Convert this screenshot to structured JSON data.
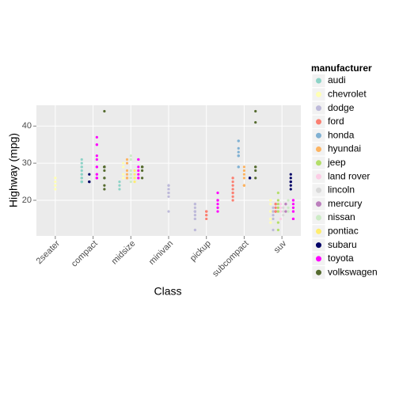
{
  "chart_data": {
    "type": "scatter",
    "x_label": "Class",
    "y_label": "Highway (mpg)",
    "legend_title": "manufacturer",
    "categories": [
      "2seater",
      "compact",
      "midsize",
      "minivan",
      "pickup",
      "subcompact",
      "suv"
    ],
    "ylim": [
      10.4,
      45.6
    ],
    "yticks": [
      20,
      30,
      40
    ],
    "grid": true,
    "legend": "right",
    "series": [
      {
        "name": "audi",
        "color": "#8dd3c7",
        "x": [
          "compact",
          "compact",
          "compact",
          "compact",
          "compact",
          "compact",
          "compact",
          "compact",
          "compact",
          "compact",
          "compact",
          "compact",
          "compact",
          "compact",
          "compact",
          "midsize",
          "midsize",
          "midsize"
        ],
        "values": [
          29,
          29,
          31,
          30,
          26,
          26,
          27,
          26,
          25,
          28,
          27,
          25,
          25,
          25,
          25,
          24,
          25,
          23
        ]
      },
      {
        "name": "chevrolet",
        "color": "#ffffb3",
        "x": [
          "2seater",
          "2seater",
          "2seater",
          "2seater",
          "2seater",
          "suv",
          "suv",
          "suv",
          "suv",
          "suv",
          "suv",
          "suv",
          "suv",
          "suv",
          "midsize",
          "midsize",
          "midsize",
          "midsize",
          "midsize"
        ],
        "values": [
          26,
          25,
          26,
          24,
          23,
          20,
          15,
          20,
          17,
          17,
          19,
          14,
          15,
          17,
          27,
          30,
          26,
          29,
          26
        ]
      },
      {
        "name": "dodge",
        "color": "#bebada",
        "x": [
          "minivan",
          "minivan",
          "minivan",
          "minivan",
          "minivan",
          "minivan",
          "minivan",
          "minivan",
          "minivan",
          "minivan",
          "minivan",
          "pickup",
          "pickup",
          "pickup",
          "pickup",
          "pickup",
          "pickup",
          "pickup",
          "pickup",
          "pickup",
          "suv",
          "suv",
          "suv",
          "suv",
          "suv",
          "suv",
          "suv",
          "pickup",
          "pickup",
          "pickup",
          "pickup",
          "pickup",
          "pickup",
          "pickup",
          "pickup",
          "pickup",
          "pickup"
        ],
        "values": [
          24,
          24,
          22,
          22,
          24,
          24,
          17,
          22,
          21,
          23,
          23,
          19,
          18,
          17,
          17,
          19,
          19,
          12,
          17,
          15,
          17,
          17,
          12,
          17,
          16,
          18,
          15,
          16,
          17,
          17,
          17,
          12,
          15,
          16,
          17,
          15,
          17
        ]
      },
      {
        "name": "ford",
        "color": "#fb8072",
        "x": [
          "suv",
          "suv",
          "suv",
          "suv",
          "suv",
          "suv",
          "suv",
          "suv",
          "suv",
          "pickup",
          "pickup",
          "pickup",
          "pickup",
          "pickup",
          "pickup",
          "pickup",
          "subcompact",
          "subcompact",
          "subcompact",
          "subcompact",
          "subcompact",
          "subcompact",
          "subcompact",
          "subcompact",
          "subcompact"
        ],
        "values": [
          17,
          17,
          18,
          17,
          19,
          19,
          19,
          17,
          17,
          17,
          16,
          17,
          17,
          16,
          17,
          15,
          26,
          25,
          26,
          24,
          21,
          22,
          23,
          22,
          20
        ]
      },
      {
        "name": "honda",
        "color": "#80b1d3",
        "x": [
          "subcompact",
          "subcompact",
          "subcompact",
          "subcompact",
          "subcompact",
          "subcompact",
          "subcompact",
          "subcompact",
          "subcompact"
        ],
        "values": [
          33,
          32,
          32,
          29,
          32,
          34,
          36,
          36,
          29
        ]
      },
      {
        "name": "hyundai",
        "color": "#fdb462",
        "x": [
          "midsize",
          "midsize",
          "midsize",
          "midsize",
          "midsize",
          "midsize",
          "midsize",
          "subcompact",
          "subcompact",
          "subcompact",
          "subcompact",
          "subcompact",
          "subcompact",
          "subcompact"
        ],
        "values": [
          26,
          27,
          30,
          31,
          26,
          26,
          28,
          26,
          29,
          28,
          27,
          24,
          24,
          24
        ]
      },
      {
        "name": "jeep",
        "color": "#b3de69",
        "x": [
          "suv",
          "suv",
          "suv",
          "suv",
          "suv",
          "suv",
          "suv",
          "suv"
        ],
        "values": [
          20,
          17,
          12,
          19,
          18,
          14,
          22,
          17
        ]
      },
      {
        "name": "land rover",
        "color": "#fccde5",
        "x": [
          "suv",
          "suv",
          "suv",
          "suv"
        ],
        "values": [
          15,
          17,
          19,
          18
        ]
      },
      {
        "name": "lincoln",
        "color": "#d9d9d9",
        "x": [
          "suv",
          "suv",
          "suv"
        ],
        "values": [
          17,
          16,
          18
        ]
      },
      {
        "name": "mercury",
        "color": "#bc80bd",
        "x": [
          "suv",
          "suv",
          "suv",
          "suv"
        ],
        "values": [
          17,
          19,
          19,
          17
        ]
      },
      {
        "name": "nissan",
        "color": "#ccebc5",
        "x": [
          "midsize",
          "midsize",
          "midsize",
          "midsize",
          "midsize",
          "midsize",
          "midsize",
          "midsize",
          "midsize",
          "suv",
          "suv",
          "suv",
          "suv"
        ],
        "values": [
          28,
          27,
          31,
          32,
          27,
          26,
          26,
          25,
          26,
          17,
          17,
          20,
          18
        ]
      },
      {
        "name": "pontiac",
        "color": "#ffed6f",
        "x": [
          "midsize",
          "midsize",
          "midsize",
          "midsize",
          "midsize"
        ],
        "values": [
          26,
          26,
          27,
          28,
          25
        ]
      },
      {
        "name": "subaru",
        "color": "#000066",
        "x": [
          "suv",
          "suv",
          "suv",
          "suv",
          "suv",
          "suv",
          "subcompact",
          "subcompact",
          "subcompact",
          "subcompact",
          "compact",
          "compact",
          "compact",
          "compact"
        ],
        "values": [
          25,
          24,
          27,
          25,
          26,
          23,
          26,
          26,
          26,
          26,
          27,
          25,
          25,
          25
        ]
      },
      {
        "name": "toyota",
        "color": "#ff00ff",
        "x": [
          "suv",
          "suv",
          "suv",
          "suv",
          "suv",
          "suv",
          "midsize",
          "midsize",
          "midsize",
          "midsize",
          "midsize",
          "midsize",
          "midsize",
          "compact",
          "compact",
          "compact",
          "compact",
          "compact",
          "compact",
          "compact",
          "compact",
          "compact",
          "compact",
          "compact",
          "compact",
          "suv",
          "suv",
          "pickup",
          "pickup",
          "pickup",
          "pickup",
          "pickup",
          "pickup",
          "pickup"
        ],
        "values": [
          20,
          15,
          20,
          17,
          17,
          19,
          27,
          29,
          31,
          31,
          26,
          26,
          28,
          27,
          29,
          31,
          32,
          27,
          26,
          26,
          35,
          37,
          35,
          29,
          26,
          15,
          18,
          20,
          20,
          22,
          17,
          19,
          18,
          20
        ]
      },
      {
        "name": "volkswagen",
        "color": "#556b2f",
        "x": [
          "compact",
          "compact",
          "compact",
          "compact",
          "compact",
          "compact",
          "compact",
          "compact",
          "compact",
          "compact",
          "compact",
          "compact",
          "compact",
          "compact",
          "subcompact",
          "subcompact",
          "subcompact",
          "subcompact",
          "subcompact",
          "subcompact",
          "midsize",
          "midsize",
          "midsize",
          "midsize",
          "midsize",
          "midsize",
          "midsize"
        ],
        "values": [
          29,
          29,
          28,
          29,
          26,
          44,
          29,
          26,
          29,
          29,
          29,
          29,
          23,
          24,
          44,
          41,
          29,
          26,
          28,
          29,
          29,
          29,
          29,
          29,
          28,
          29,
          26
        ]
      }
    ]
  }
}
